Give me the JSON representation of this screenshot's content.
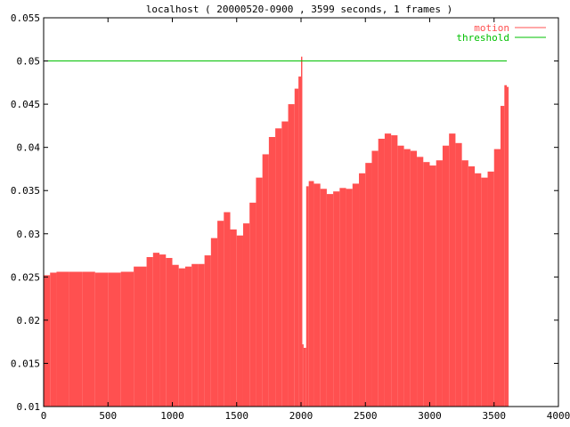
{
  "chart_data": {
    "type": "area",
    "title": "localhost ( 20000520-0900 , 3599 seconds, 1 frames )",
    "xlabel": "",
    "ylabel": "",
    "xlim": [
      0,
      4000
    ],
    "ylim": [
      0.01,
      0.055
    ],
    "x_ticks": [
      0,
      500,
      1000,
      1500,
      2000,
      2500,
      3000,
      3500,
      4000
    ],
    "x_tick_labels": [
      "0",
      "500",
      "1000",
      "1500",
      "2000",
      "2500",
      "3000",
      "3500",
      "4000"
    ],
    "y_ticks": [
      0.01,
      0.015,
      0.02,
      0.025,
      0.03,
      0.035,
      0.04,
      0.045,
      0.05,
      0.055
    ],
    "y_tick_labels": [
      "0.01",
      "0.015",
      "0.02",
      "0.025",
      "0.03",
      "0.035",
      "0.04",
      "0.045",
      "0.05",
      "0.055"
    ],
    "grid": false,
    "legend_position": "top-right",
    "series": [
      {
        "name": "motion",
        "color": "#ff5050",
        "style": "impulses",
        "x": [
          0,
          50,
          100,
          200,
          300,
          400,
          500,
          600,
          700,
          800,
          850,
          900,
          950,
          1000,
          1050,
          1100,
          1150,
          1200,
          1250,
          1300,
          1350,
          1400,
          1450,
          1500,
          1550,
          1600,
          1650,
          1700,
          1750,
          1800,
          1850,
          1900,
          1950,
          1980,
          2000,
          2010,
          2020,
          2040,
          2060,
          2100,
          2150,
          2200,
          2250,
          2300,
          2350,
          2400,
          2450,
          2500,
          2550,
          2600,
          2650,
          2700,
          2750,
          2800,
          2850,
          2900,
          2950,
          3000,
          3050,
          3100,
          3150,
          3200,
          3250,
          3300,
          3350,
          3400,
          3450,
          3500,
          3550,
          3580,
          3599
        ],
        "y": [
          0.0252,
          0.0255,
          0.0256,
          0.0256,
          0.0256,
          0.0255,
          0.0255,
          0.0256,
          0.0262,
          0.0273,
          0.0278,
          0.0276,
          0.0272,
          0.0264,
          0.026,
          0.0262,
          0.0265,
          0.0265,
          0.0275,
          0.0295,
          0.0315,
          0.0325,
          0.0305,
          0.0298,
          0.0312,
          0.0336,
          0.0365,
          0.0392,
          0.0412,
          0.0422,
          0.043,
          0.045,
          0.0468,
          0.0482,
          0.0505,
          0.0172,
          0.0168,
          0.0355,
          0.0361,
          0.0358,
          0.0352,
          0.0346,
          0.0349,
          0.0353,
          0.0352,
          0.0358,
          0.037,
          0.0382,
          0.0396,
          0.041,
          0.0416,
          0.0414,
          0.0402,
          0.0398,
          0.0396,
          0.0389,
          0.0383,
          0.0379,
          0.0385,
          0.0402,
          0.0416,
          0.0405,
          0.0385,
          0.0378,
          0.037,
          0.0365,
          0.0372,
          0.0398,
          0.0448,
          0.0472,
          0.047
        ]
      },
      {
        "name": "threshold",
        "color": "#00c000",
        "style": "lines",
        "x": [
          0,
          3599
        ],
        "y": [
          0.05,
          0.05
        ]
      }
    ]
  }
}
